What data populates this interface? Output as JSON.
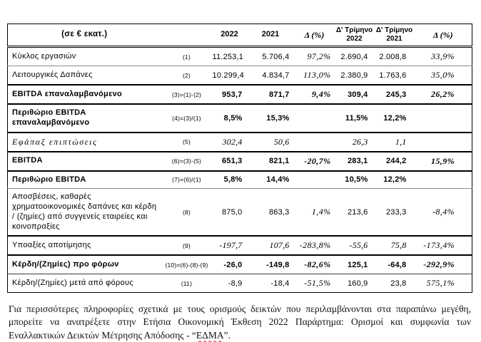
{
  "table": {
    "unit_header": "(σε € εκατ.)",
    "columns": {
      "y2022": "2022",
      "y2021": "2021",
      "delta1": "Δ (%)",
      "q2022": "Δ' Τρίμηνο\n2022",
      "q2021": "Δ' Τρίμηνο\n2021",
      "delta2": "Δ (%)"
    },
    "rows": [
      {
        "label": "Κύκλος εργασιών",
        "ref": "(1)",
        "v": [
          "11.253,1",
          "5.706,4",
          "97,2%",
          "2.690,4",
          "2.008,8",
          "33,9%"
        ]
      },
      {
        "label": "Λειτουργικές Δαπάνες",
        "ref": "(2)",
        "v": [
          "10.299,4",
          "4.834,7",
          "113,0%",
          "2.380,9",
          "1.763,6",
          "35,0%"
        ]
      },
      {
        "label": "EBITDA επαναλαμβανόμενο",
        "ref": "(3)=(1)-(2)",
        "v": [
          "953,7",
          "871,7",
          "9,4%",
          "309,4",
          "245,3",
          "26,2%"
        ]
      },
      {
        "label": "Περιθώριο EBITDA επαναλαμβανόμενο",
        "ref": "(4)=(3)/(1)",
        "v": [
          "8,5%",
          "15,3%",
          "",
          "11,5%",
          "12,2%",
          ""
        ]
      },
      {
        "label": "Εφάπαξ επιπτώσεις",
        "ref": "(5)",
        "v": [
          "302,4",
          "50,6",
          "",
          "26,3",
          "1,1",
          ""
        ]
      },
      {
        "label": "EBITDA",
        "ref": "(6)=(3)-(5)",
        "v": [
          "651,3",
          "821,1",
          "-20,7%",
          "283,1",
          "244,2",
          "15,9%"
        ]
      },
      {
        "label": "Περιθώριο EBITDA",
        "ref": "(7)=(6)/(1)",
        "v": [
          "5,8%",
          "14,4%",
          "",
          "10,5%",
          "12,2%",
          ""
        ]
      },
      {
        "label": "Αποσβέσεις, καθαρές χρηματοοικονομικές δαπάνες και κέρδη / (ζημίες) από συγγενείς εταιρείες και κοινοπραξίες",
        "ref": "(8)",
        "v": [
          "875,0",
          "863,3",
          "1,4%",
          "213,6",
          "233,3",
          "-8,4%"
        ]
      },
      {
        "label": "Υποαξίες αποτίμησης",
        "ref": "(9)",
        "v": [
          "-197,7",
          "107,6",
          "-283,8%",
          "-55,6",
          "75,8",
          "-173,4%"
        ]
      },
      {
        "label": "Κέρδη/(Ζημίες) προ φόρων",
        "ref": "(10)=(6)-(8)-(9)",
        "v": [
          "-26,0",
          "-149,8",
          "-82,6%",
          "125,1",
          "-64,8",
          "-292,9%"
        ]
      },
      {
        "label": "Κέρδη/(Ζημίες) μετά από φόρους",
        "ref": "(11)",
        "v": [
          "-8,9",
          "-18,4",
          "-51,5%",
          "160,9",
          "23,8",
          "575,1%"
        ]
      }
    ]
  },
  "footnote": {
    "text_before": "Για περισσότερες πληροφορίες σχετικά με τους ορισμούς δεικτών που περιλαμβάνονται στα παραπάνω μεγέθη, μπορείτε να ανατρέξετε στην Ετήσια Οικονομική Έκθεση 2022 Παράρτημα: Ορισμοί και συμφωνία των Εναλλακτικών Δεικτών Μέτρησης Απόδοσης - “",
    "highlight_word": "ΕΔΜΑ",
    "text_after": "”."
  }
}
